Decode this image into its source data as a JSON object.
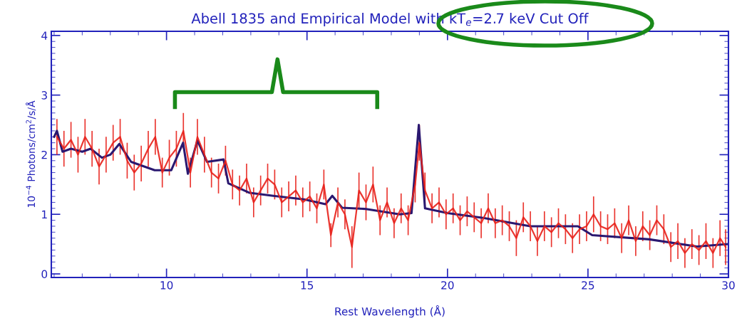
{
  "chart_data": {
    "type": "line",
    "title": "Abell 1835 and Empirical Model with kT$_{e}$=2.7 keV Cut Off",
    "xlabel": "Rest Wavelength (Å)",
    "ylabel": "10$^{−4}$ Photons/cm$^{2}$/s/Å",
    "xlim": [
      5.9,
      30
    ],
    "ylim": [
      -0.06,
      4.07
    ],
    "xticks": [
      10,
      15,
      20,
      25,
      30
    ],
    "yticks": [
      0,
      1,
      2,
      3,
      4
    ],
    "grid": false,
    "legend": false,
    "series": [
      {
        "color": "#e8201a",
        "x": [
          6.1,
          6.35,
          6.6,
          6.85,
          7.1,
          7.35,
          7.6,
          7.85,
          8.1,
          8.35,
          8.6,
          8.85,
          9.1,
          9.35,
          9.6,
          9.85,
          10.1,
          10.35,
          10.6,
          10.85,
          11.1,
          11.35,
          11.6,
          11.85,
          12.1,
          12.35,
          12.6,
          12.85,
          13.1,
          13.35,
          13.6,
          13.85,
          14.1,
          14.35,
          14.6,
          14.85,
          15.1,
          15.35,
          15.6,
          15.85,
          16.1,
          16.35,
          16.6,
          16.85,
          17.1,
          17.35,
          17.6,
          17.85,
          18.1,
          18.35,
          18.6,
          18.85,
          19.0,
          19.2,
          19.45,
          19.7,
          19.95,
          20.2,
          20.45,
          20.7,
          20.95,
          21.2,
          21.45,
          21.7,
          21.95,
          22.2,
          22.45,
          22.7,
          22.95,
          23.2,
          23.45,
          23.7,
          23.95,
          24.2,
          24.45,
          24.7,
          24.95,
          25.2,
          25.45,
          25.7,
          25.95,
          26.2,
          26.45,
          26.7,
          26.95,
          27.2,
          27.45,
          27.7,
          27.95,
          28.2,
          28.45,
          28.7,
          28.95,
          29.2,
          29.45,
          29.7,
          29.9
        ],
        "values": [
          2.3,
          2.1,
          2.25,
          2.0,
          2.3,
          2.1,
          1.8,
          2.0,
          2.2,
          2.3,
          1.9,
          1.7,
          1.85,
          2.1,
          2.3,
          1.7,
          1.95,
          2.1,
          2.4,
          1.7,
          2.3,
          2.0,
          1.7,
          1.6,
          1.9,
          1.5,
          1.4,
          1.6,
          1.2,
          1.4,
          1.6,
          1.5,
          1.2,
          1.3,
          1.4,
          1.2,
          1.3,
          1.1,
          1.5,
          0.65,
          1.2,
          1.0,
          0.45,
          1.4,
          1.2,
          1.5,
          0.9,
          1.2,
          0.85,
          1.1,
          0.9,
          1.5,
          2.2,
          1.4,
          1.1,
          1.2,
          1.0,
          1.1,
          0.9,
          1.05,
          0.95,
          0.85,
          1.1,
          0.85,
          0.9,
          0.8,
          0.6,
          0.95,
          0.8,
          0.55,
          0.8,
          0.7,
          0.85,
          0.75,
          0.6,
          0.75,
          0.8,
          1.0,
          0.8,
          0.75,
          0.85,
          0.6,
          0.9,
          0.55,
          0.8,
          0.65,
          0.9,
          0.75,
          0.45,
          0.55,
          0.35,
          0.5,
          0.4,
          0.55,
          0.35,
          0.6,
          0.45
        ],
        "errors": [
          0.3,
          0.3,
          0.3,
          0.3,
          0.3,
          0.3,
          0.3,
          0.3,
          0.3,
          0.3,
          0.3,
          0.3,
          0.3,
          0.3,
          0.3,
          0.25,
          0.3,
          0.3,
          0.3,
          0.25,
          0.3,
          0.3,
          0.25,
          0.25,
          0.25,
          0.25,
          0.25,
          0.25,
          0.25,
          0.25,
          0.25,
          0.25,
          0.25,
          0.25,
          0.25,
          0.25,
          0.25,
          0.25,
          0.25,
          0.2,
          0.25,
          0.25,
          0.35,
          0.3,
          0.3,
          0.3,
          0.25,
          0.25,
          0.25,
          0.25,
          0.25,
          0.3,
          0.3,
          0.3,
          0.25,
          0.25,
          0.25,
          0.25,
          0.25,
          0.25,
          0.25,
          0.25,
          0.25,
          0.25,
          0.25,
          0.25,
          0.3,
          0.25,
          0.25,
          0.25,
          0.25,
          0.25,
          0.25,
          0.25,
          0.25,
          0.25,
          0.25,
          0.3,
          0.25,
          0.25,
          0.25,
          0.25,
          0.25,
          0.25,
          0.25,
          0.25,
          0.25,
          0.25,
          0.25,
          0.3,
          0.25,
          0.25,
          0.25,
          0.3,
          0.25,
          0.3,
          0.3
        ]
      },
      {
        "color": "#2a1870",
        "x": [
          6.0,
          6.1,
          6.3,
          6.6,
          7.0,
          7.3,
          7.7,
          8.0,
          8.32,
          8.74,
          9.58,
          10.17,
          10.59,
          10.76,
          11.1,
          11.44,
          12.03,
          12.2,
          12.96,
          13.8,
          14.9,
          15.66,
          15.9,
          16.25,
          17.1,
          18.3,
          18.72,
          18.98,
          19.2,
          20.0,
          21.27,
          22.95,
          24.64,
          25.15,
          27.18,
          28.88,
          29.97
        ],
        "values": [
          2.3,
          2.4,
          2.05,
          2.1,
          2.05,
          2.1,
          1.95,
          2.0,
          2.18,
          1.88,
          1.74,
          1.74,
          2.2,
          1.68,
          2.24,
          1.88,
          1.92,
          1.52,
          1.36,
          1.31,
          1.25,
          1.17,
          1.31,
          1.11,
          1.09,
          1.0,
          1.02,
          2.5,
          1.1,
          1.02,
          0.94,
          0.8,
          0.8,
          0.65,
          0.58,
          0.46,
          0.5
        ]
      }
    ]
  }
}
